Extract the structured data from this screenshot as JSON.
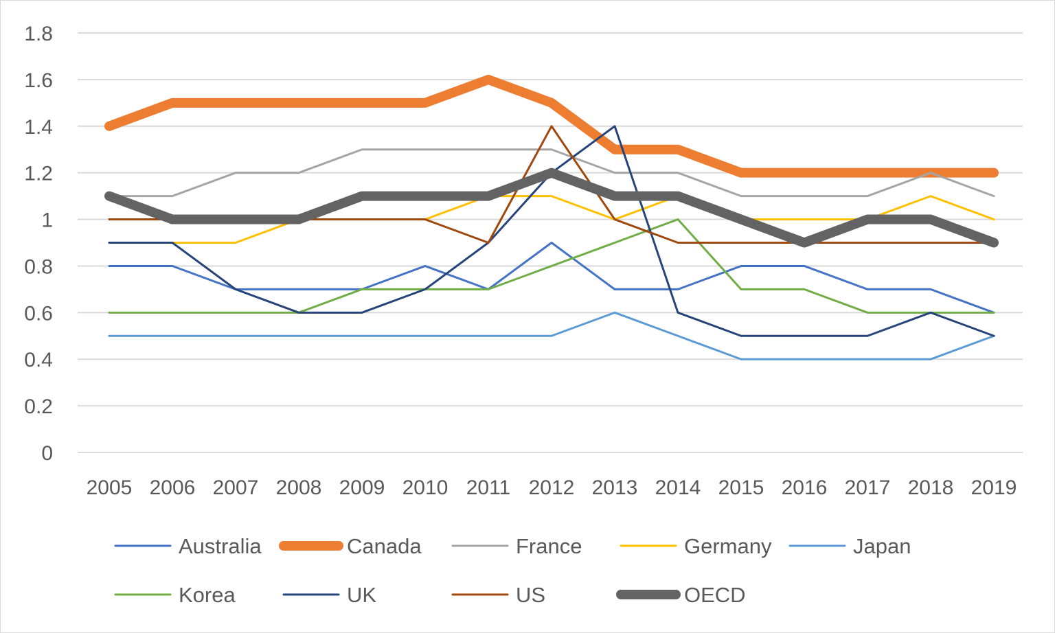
{
  "chart_data": {
    "type": "line",
    "title": "",
    "xlabel": "",
    "ylabel": "",
    "x": [
      "2005",
      "2006",
      "2007",
      "2008",
      "2009",
      "2010",
      "2011",
      "2012",
      "2013",
      "2014",
      "2015",
      "2016",
      "2017",
      "2018",
      "2019"
    ],
    "ylim": [
      0,
      1.8
    ],
    "yticks": [
      "0",
      "0.2",
      "0.4",
      "0.6",
      "0.8",
      "1",
      "1.2",
      "1.4",
      "1.6",
      "1.8"
    ],
    "grid": true,
    "legend_position": "bottom",
    "series": [
      {
        "name": "Australia",
        "color": "#4472C4",
        "emphasis": false,
        "values": [
          0.8,
          0.8,
          0.7,
          0.7,
          0.7,
          0.8,
          0.7,
          0.9,
          0.7,
          0.7,
          0.8,
          0.8,
          0.7,
          0.7,
          0.6
        ]
      },
      {
        "name": "Canada",
        "color": "#ED7D31",
        "emphasis": true,
        "values": [
          1.4,
          1.5,
          1.5,
          1.5,
          1.5,
          1.5,
          1.6,
          1.5,
          1.3,
          1.3,
          1.2,
          1.2,
          1.2,
          1.2,
          1.2
        ]
      },
      {
        "name": "France",
        "color": "#A5A5A5",
        "emphasis": false,
        "values": [
          1.1,
          1.1,
          1.2,
          1.2,
          1.3,
          1.3,
          1.3,
          1.3,
          1.2,
          1.2,
          1.1,
          1.1,
          1.1,
          1.2,
          1.1
        ]
      },
      {
        "name": "Germany",
        "color": "#FFC000",
        "emphasis": false,
        "values": [
          0.9,
          0.9,
          0.9,
          1.0,
          1.0,
          1.0,
          1.1,
          1.1,
          1.0,
          1.1,
          1.0,
          1.0,
          1.0,
          1.1,
          1.0
        ]
      },
      {
        "name": "Japan",
        "color": "#5B9BD5",
        "emphasis": false,
        "values": [
          0.5,
          0.5,
          0.5,
          0.5,
          0.5,
          0.5,
          0.5,
          0.5,
          0.6,
          0.5,
          0.4,
          0.4,
          0.4,
          0.4,
          0.5
        ]
      },
      {
        "name": "Korea",
        "color": "#70AD47",
        "emphasis": false,
        "values": [
          0.6,
          0.6,
          0.6,
          0.6,
          0.7,
          0.7,
          0.7,
          0.8,
          0.9,
          1.0,
          0.7,
          0.7,
          0.6,
          0.6,
          0.6
        ]
      },
      {
        "name": "UK",
        "color": "#264478",
        "emphasis": false,
        "values": [
          0.9,
          0.9,
          0.7,
          0.6,
          0.6,
          0.7,
          0.9,
          1.2,
          1.4,
          0.6,
          0.5,
          0.5,
          0.5,
          0.6,
          0.5
        ]
      },
      {
        "name": "US",
        "color": "#9E480E",
        "emphasis": false,
        "values": [
          1.0,
          1.0,
          1.0,
          1.0,
          1.0,
          1.0,
          0.9,
          1.4,
          1.0,
          0.9,
          0.9,
          0.9,
          0.9,
          0.9,
          0.9
        ]
      },
      {
        "name": "OECD",
        "color": "#636363",
        "emphasis": true,
        "values": [
          1.1,
          1.0,
          1.0,
          1.0,
          1.1,
          1.1,
          1.1,
          1.2,
          1.1,
          1.1,
          1.0,
          0.9,
          1.0,
          1.0,
          0.9
        ]
      }
    ]
  }
}
